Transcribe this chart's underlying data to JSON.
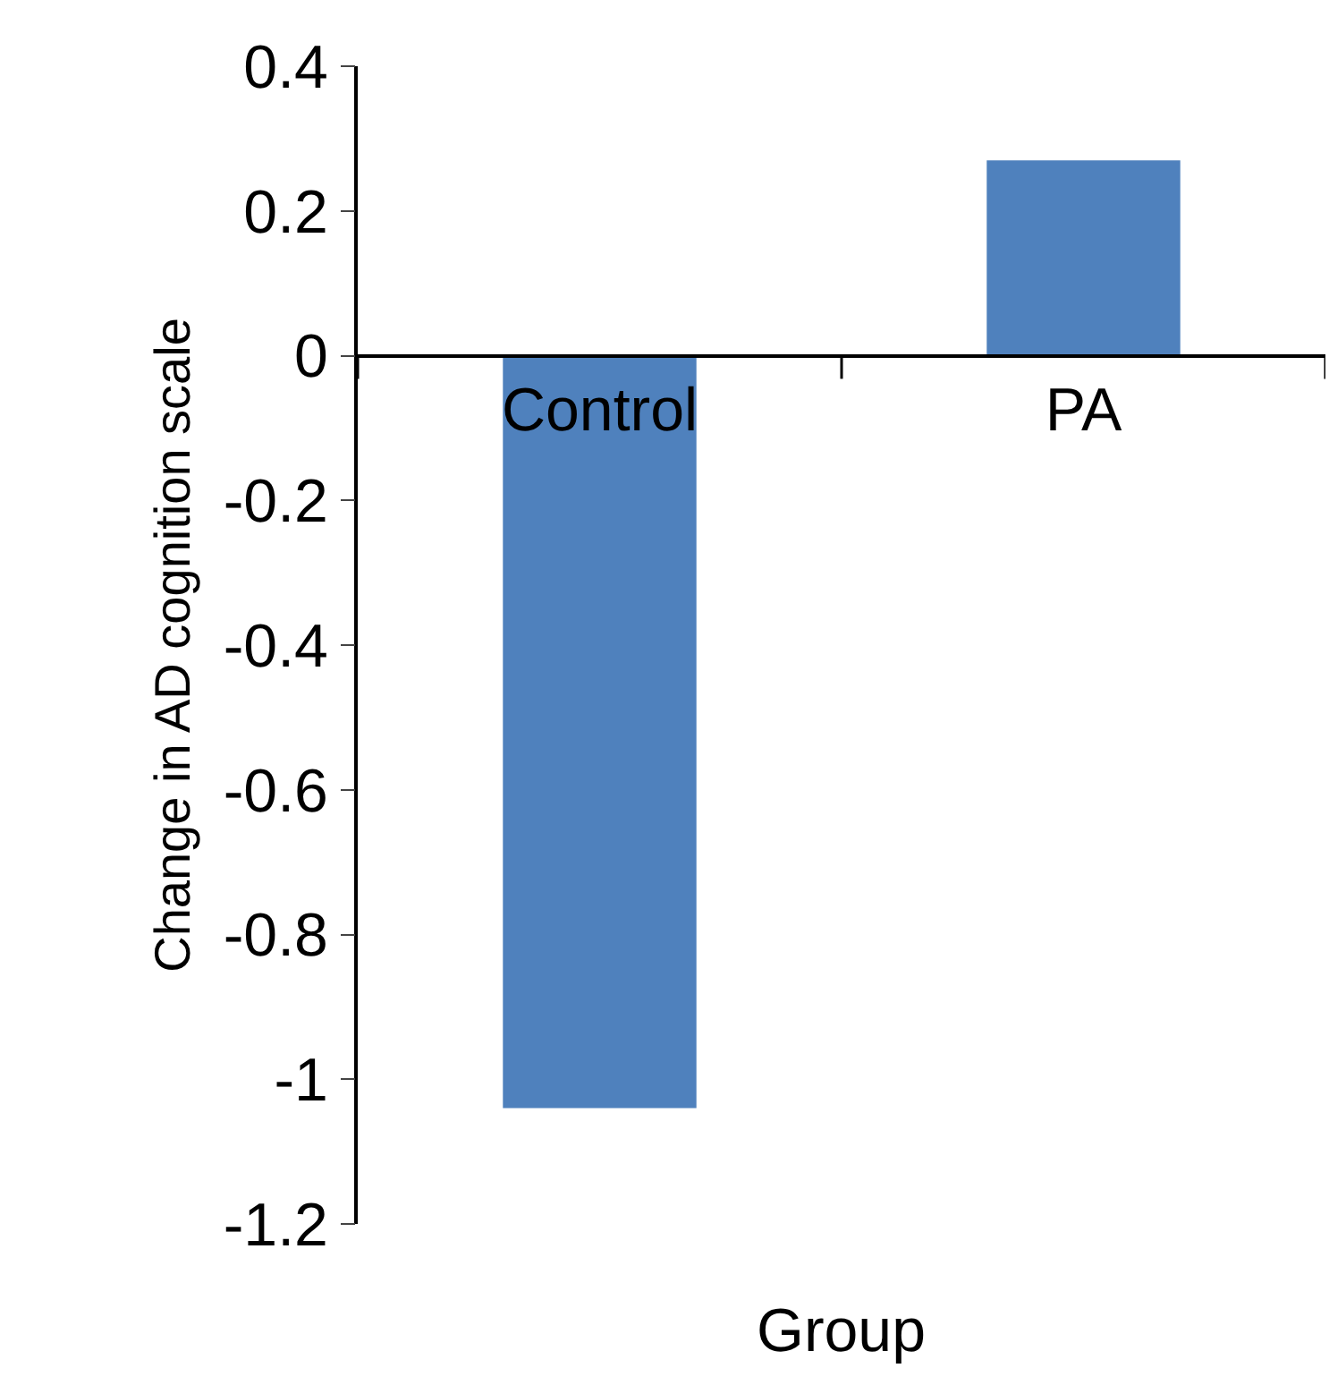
{
  "chart_data": {
    "type": "bar",
    "xlabel": "Group",
    "ylabel": "Change in AD cognition scale",
    "categories": [
      "Control",
      "PA"
    ],
    "values": [
      -1.04,
      0.27
    ],
    "color": "#4f81bd",
    "ylim": [
      -1.2,
      0.4
    ],
    "yticks": [
      0.4,
      0.2,
      0,
      -0.2,
      -0.4,
      -0.6,
      -0.8,
      -1,
      -1.2
    ]
  }
}
